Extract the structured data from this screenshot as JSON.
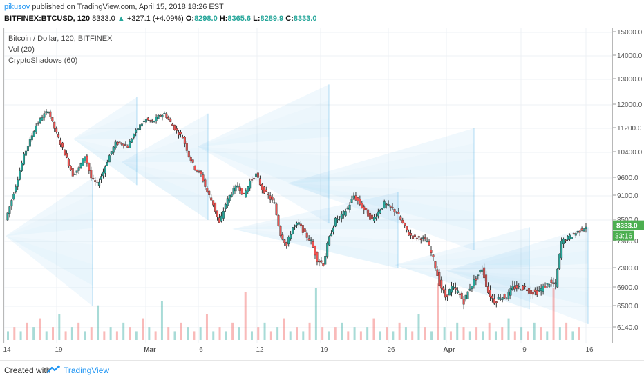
{
  "header": {
    "user": "pikusov",
    "published": " published on TradingView.com, April 15, 2018 18:26 EST",
    "symbol": "BITFINEX:BTCUSD, 120",
    "last": "8333.0",
    "change_arrow": "▲",
    "change": "+327.1 (+4.09%)",
    "o_label": "O:",
    "o": "8298.0",
    "h_label": "H:",
    "h": "8365.6",
    "l_label": "L:",
    "l": "8289.9",
    "c_label": "C:",
    "c": "8333.0"
  },
  "legend": {
    "title": "Bitcoin / Dollar, 120, BITFINEX",
    "vol": "Vol (20)",
    "indicator": "CryptoShadows (60)"
  },
  "price_badge": {
    "price": "8333.0",
    "countdown": "33:16"
  },
  "footer": {
    "created": "Created with",
    "brand": "TradingView"
  },
  "colors": {
    "up": "#26a69a",
    "down": "#ef5350",
    "shadow": "#29a0e0",
    "grid": "#eef1f4",
    "axis_text": "#555555",
    "badge": "#4caf50"
  },
  "chart_data": {
    "type": "candlestick",
    "y_ticks": [
      "15000.0",
      "14000.0",
      "13000.0",
      "12000.0",
      "11200.0",
      "10400.0",
      "9600.0",
      "9100.0",
      "8500.0",
      "7900.0",
      "7300.0",
      "6900.0",
      "6500.0",
      "6140.0"
    ],
    "x_ticks": [
      "14",
      "19",
      "Mar",
      "6",
      "12",
      "19",
      "26",
      "Apr",
      "9",
      "16"
    ],
    "price_path": [
      [
        0,
        8500
      ],
      [
        3,
        9000
      ],
      [
        6,
        9600
      ],
      [
        9,
        10300
      ],
      [
        12,
        10800
      ],
      [
        15,
        11300
      ],
      [
        18,
        11600
      ],
      [
        21,
        11800
      ],
      [
        24,
        11200
      ],
      [
        27,
        10700
      ],
      [
        30,
        10200
      ],
      [
        33,
        9700
      ],
      [
        36,
        9900
      ],
      [
        39,
        10300
      ],
      [
        42,
        9600
      ],
      [
        45,
        9400
      ],
      [
        48,
        9800
      ],
      [
        51,
        10300
      ],
      [
        54,
        10700
      ],
      [
        57,
        10700
      ],
      [
        60,
        10600
      ],
      [
        63,
        11000
      ],
      [
        66,
        11300
      ],
      [
        69,
        11500
      ],
      [
        72,
        11400
      ],
      [
        75,
        11600
      ],
      [
        78,
        11700
      ],
      [
        81,
        11400
      ],
      [
        84,
        11100
      ],
      [
        87,
        10900
      ],
      [
        90,
        10300
      ],
      [
        93,
        9900
      ],
      [
        96,
        9700
      ],
      [
        99,
        9200
      ],
      [
        102,
        8900
      ],
      [
        105,
        8400
      ],
      [
        108,
        8900
      ],
      [
        111,
        9200
      ],
      [
        114,
        9400
      ],
      [
        117,
        9100
      ],
      [
        120,
        9500
      ],
      [
        123,
        9700
      ],
      [
        126,
        9300
      ],
      [
        129,
        9100
      ],
      [
        132,
        8900
      ],
      [
        135,
        8100
      ],
      [
        138,
        7800
      ],
      [
        141,
        8300
      ],
      [
        144,
        8400
      ],
      [
        147,
        8100
      ],
      [
        150,
        7900
      ],
      [
        153,
        7500
      ],
      [
        156,
        7400
      ],
      [
        159,
        8000
      ],
      [
        162,
        8500
      ],
      [
        165,
        8600
      ],
      [
        168,
        8800
      ],
      [
        171,
        9100
      ],
      [
        174,
        8900
      ],
      [
        177,
        8700
      ],
      [
        180,
        8500
      ],
      [
        183,
        8700
      ],
      [
        186,
        8900
      ],
      [
        189,
        8800
      ],
      [
        192,
        8700
      ],
      [
        195,
        8400
      ],
      [
        198,
        8100
      ],
      [
        201,
        8000
      ],
      [
        204,
        8000
      ],
      [
        207,
        7900
      ],
      [
        210,
        7500
      ],
      [
        213,
        7000
      ],
      [
        216,
        6700
      ],
      [
        219,
        6900
      ],
      [
        222,
        6800
      ],
      [
        225,
        6600
      ],
      [
        228,
        6900
      ],
      [
        231,
        7100
      ],
      [
        234,
        7300
      ],
      [
        237,
        6800
      ],
      [
        240,
        6600
      ],
      [
        243,
        6700
      ],
      [
        246,
        6700
      ],
      [
        249,
        6900
      ],
      [
        252,
        6900
      ],
      [
        255,
        6900
      ],
      [
        258,
        6800
      ],
      [
        261,
        6800
      ],
      [
        264,
        6900
      ],
      [
        267,
        7000
      ],
      [
        270,
        6950
      ],
      [
        273,
        7900
      ],
      [
        276,
        8000
      ],
      [
        279,
        8100
      ],
      [
        282,
        8200
      ],
      [
        285,
        8333
      ]
    ],
    "volume": [
      2,
      3,
      2,
      4,
      3,
      5,
      2,
      3,
      6,
      2,
      3,
      4,
      2,
      3,
      8,
      2,
      3,
      2,
      4,
      3,
      2,
      5,
      3,
      2,
      9,
      3,
      2,
      4,
      3,
      2,
      3,
      6,
      2,
      3,
      2,
      4,
      3,
      11,
      2,
      3,
      4,
      2,
      3,
      5,
      2,
      3,
      2,
      4,
      12,
      3,
      2,
      3,
      4,
      2,
      3,
      2,
      3,
      5,
      2,
      3,
      2,
      4,
      3,
      2,
      6,
      3,
      2,
      13,
      3,
      2,
      4,
      3,
      2,
      3,
      2,
      4,
      2,
      3,
      5,
      2,
      3,
      2,
      4,
      3,
      2,
      12,
      3,
      4,
      2,
      3
    ]
  }
}
